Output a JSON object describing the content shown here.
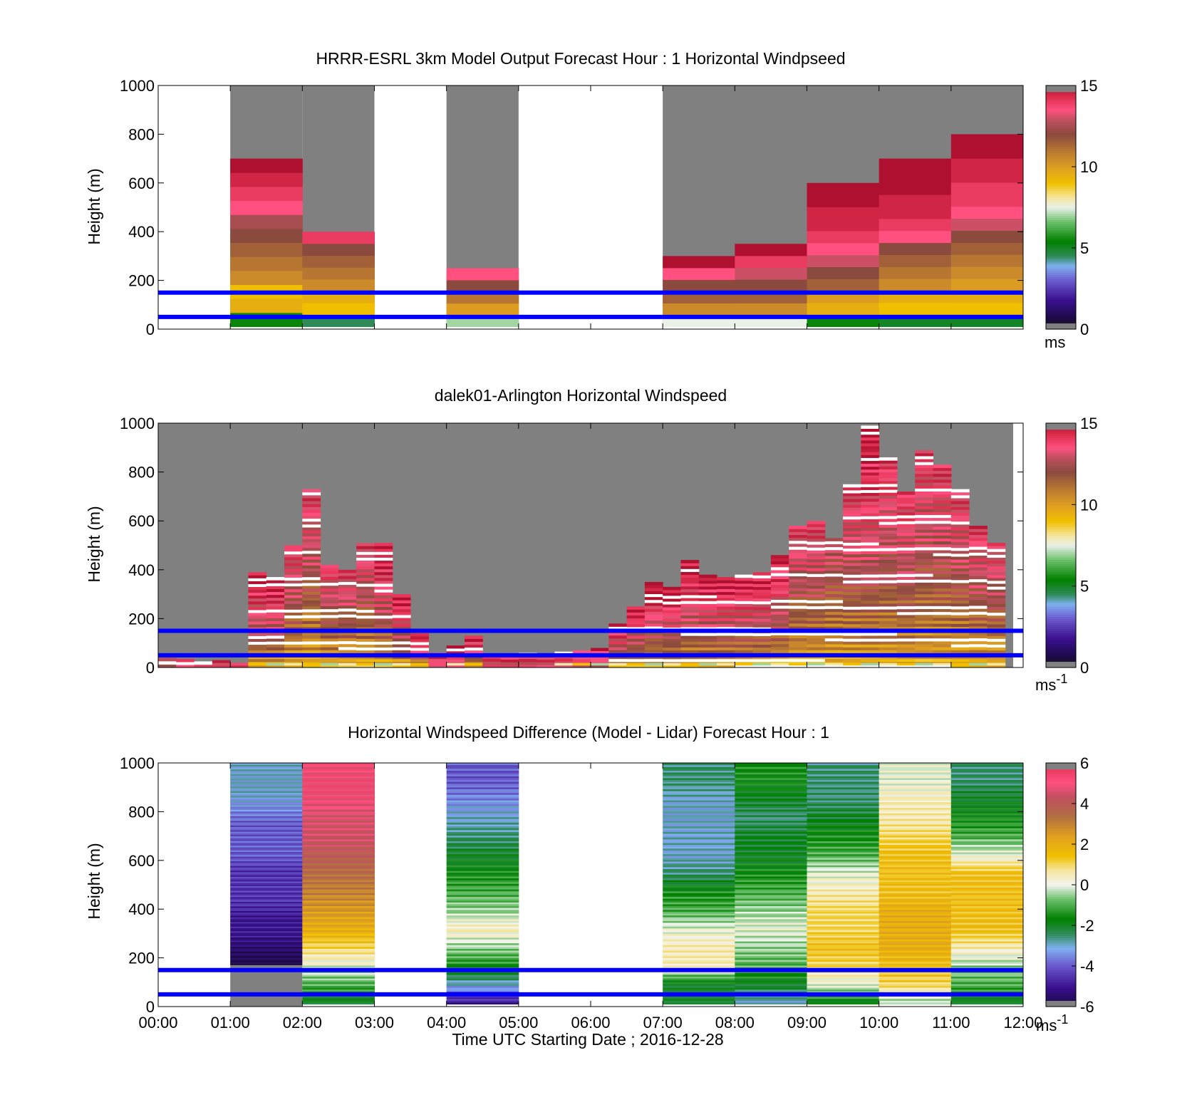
{
  "chart_data": [
    {
      "type": "heatmap",
      "id": "model",
      "title": "HRRR-ESRL 3km Model Output   Forecast Hour : 1 Horizontal Windpseed",
      "ylabel": "Height (m)",
      "ylim": [
        0,
        1000
      ],
      "yticks": [
        "0",
        "200",
        "400",
        "600",
        "800",
        "1000"
      ],
      "xlim": [
        0,
        12
      ],
      "colorbar": {
        "min": 0,
        "max": 15,
        "ticks": [
          "0",
          "5",
          "10",
          "15"
        ],
        "unit": "ms",
        "unit_sup": ""
      },
      "reference_lines_m": [
        50,
        150
      ],
      "colormap": [
        "#808080",
        "#1a0a40",
        "#3a1090",
        "#6a5acd",
        "#7fb0f0",
        "#2e8b57",
        "#008000",
        "#6abf6a",
        "#e8f0e8",
        "#f5e6a0",
        "#f0c000",
        "#e0a020",
        "#c08030",
        "#a06040",
        "#8b4a3e",
        "#c05060",
        "#ff5080",
        "#e03050",
        "#b01030",
        "#808080"
      ],
      "blocks": [
        {
          "t0": 1,
          "t1": 2,
          "top": 700,
          "bottom": 10,
          "values": [
            5.5,
            9.5,
            9.0,
            10.5,
            11.0,
            11.5,
            12.0,
            12.5,
            13.5,
            14.0,
            14.5,
            15.0
          ],
          "step": 50
        },
        {
          "t0": 2,
          "t1": 3,
          "top": 400,
          "bottom": 10,
          "values": [
            4.5,
            9.0,
            9.5,
            10.5,
            11.0,
            11.5,
            12.0,
            14.0
          ],
          "step": 50
        },
        {
          "t0": 4,
          "t1": 5,
          "top": 250,
          "bottom": 10,
          "values": [
            7.0,
            10.0,
            11.0,
            12.0,
            13.5
          ],
          "step": 50
        },
        {
          "t0": 7,
          "t1": 8,
          "top": 300,
          "bottom": 10,
          "values": [
            7.5,
            10.5,
            11.5,
            12.0,
            13.5,
            15.0
          ],
          "step": 50
        },
        {
          "t0": 8,
          "t1": 9,
          "top": 350,
          "bottom": 10,
          "values": [
            7.5,
            10.5,
            11.5,
            12.0,
            13.0,
            14.0,
            15.0
          ],
          "step": 50
        },
        {
          "t0": 9,
          "t1": 10,
          "top": 600,
          "bottom": 10,
          "values": [
            5.5,
            9.5,
            10.0,
            11.5,
            12.0,
            13.0,
            13.5,
            14.0,
            14.5,
            14.5,
            15.0,
            15.0
          ],
          "step": 50
        },
        {
          "t0": 10,
          "t1": 11,
          "top": 700,
          "bottom": 10,
          "values": [
            5.0,
            9.0,
            9.5,
            10.5,
            11.0,
            11.5,
            12.0,
            13.5,
            14.0,
            14.5,
            14.5,
            15.0,
            15.0,
            15.0
          ],
          "step": 50
        },
        {
          "t0": 11,
          "t1": 12,
          "top": 800,
          "bottom": 10,
          "values": [
            5.0,
            9.0,
            9.5,
            10.0,
            10.5,
            11.0,
            11.5,
            12.0,
            13.0,
            13.5,
            14.0,
            14.0,
            14.5,
            14.5,
            15.0,
            15.0
          ],
          "step": 50
        }
      ],
      "missing_fill": [
        [
          1,
          2
        ],
        [
          2,
          3
        ],
        [
          4,
          5
        ],
        [
          7,
          12
        ]
      ]
    },
    {
      "type": "heatmap",
      "id": "lidar",
      "title": "dalek01-Arlington  Horizontal Windspeed",
      "ylabel": "Height (m)",
      "ylim": [
        0,
        1000
      ],
      "yticks": [
        "0",
        "200",
        "400",
        "600",
        "800",
        "1000"
      ],
      "xlim": [
        0,
        12
      ],
      "colorbar": {
        "min": 0,
        "max": 15,
        "ticks": [
          "0",
          "5",
          "10",
          "15"
        ],
        "unit": "ms",
        "unit_sup": "-1"
      },
      "reference_lines_m": [
        50,
        150
      ],
      "columns": [
        {
          "t": 0.25,
          "top": 40,
          "peak": 13
        },
        {
          "t": 0.5,
          "top": 35,
          "peak": 14
        },
        {
          "t": 0.75,
          "top": 25,
          "peak": 14
        },
        {
          "t": 1.0,
          "top": 30,
          "peak": 14
        },
        {
          "t": 1.25,
          "top": 20,
          "peak": 14
        },
        {
          "t": 1.5,
          "top": 390,
          "peak": 14
        },
        {
          "t": 1.75,
          "top": 370,
          "peak": 14
        },
        {
          "t": 2.0,
          "top": 500,
          "peak": 13
        },
        {
          "t": 2.25,
          "top": 730,
          "peak": 13
        },
        {
          "t": 2.5,
          "top": 420,
          "peak": 13
        },
        {
          "t": 2.75,
          "top": 400,
          "peak": 13
        },
        {
          "t": 3.0,
          "top": 510,
          "peak": 13
        },
        {
          "t": 3.25,
          "top": 510,
          "peak": 14
        },
        {
          "t": 3.5,
          "top": 300,
          "peak": 14
        },
        {
          "t": 3.75,
          "top": 140,
          "peak": 14
        },
        {
          "t": 4.0,
          "top": 60,
          "peak": 14
        },
        {
          "t": 4.25,
          "top": 90,
          "peak": 14
        },
        {
          "t": 4.5,
          "top": 130,
          "peak": 14
        },
        {
          "t": 4.75,
          "top": 50,
          "peak": 14
        },
        {
          "t": 5.0,
          "top": 45,
          "peak": 14
        },
        {
          "t": 5.25,
          "top": 60,
          "peak": 14
        },
        {
          "t": 5.5,
          "top": 55,
          "peak": 14
        },
        {
          "t": 5.75,
          "top": 65,
          "peak": 14
        },
        {
          "t": 6.0,
          "top": 70,
          "peak": 14
        },
        {
          "t": 6.25,
          "top": 80,
          "peak": 14
        },
        {
          "t": 6.5,
          "top": 180,
          "peak": 14
        },
        {
          "t": 6.75,
          "top": 250,
          "peak": 14
        },
        {
          "t": 7.0,
          "top": 350,
          "peak": 14
        },
        {
          "t": 7.25,
          "top": 330,
          "peak": 14
        },
        {
          "t": 7.5,
          "top": 440,
          "peak": 14
        },
        {
          "t": 7.75,
          "top": 380,
          "peak": 14
        },
        {
          "t": 8.0,
          "top": 370,
          "peak": 14
        },
        {
          "t": 8.25,
          "top": 380,
          "peak": 14
        },
        {
          "t": 8.5,
          "top": 390,
          "peak": 14
        },
        {
          "t": 8.75,
          "top": 460,
          "peak": 14
        },
        {
          "t": 9.0,
          "top": 580,
          "peak": 13
        },
        {
          "t": 9.25,
          "top": 600,
          "peak": 13
        },
        {
          "t": 9.5,
          "top": 530,
          "peak": 12
        },
        {
          "t": 9.75,
          "top": 750,
          "peak": 13
        },
        {
          "t": 10.0,
          "top": 990,
          "peak": 14
        },
        {
          "t": 10.25,
          "top": 860,
          "peak": 13
        },
        {
          "t": 10.5,
          "top": 720,
          "peak": 13
        },
        {
          "t": 10.75,
          "top": 890,
          "peak": 13
        },
        {
          "t": 11.0,
          "top": 830,
          "peak": 13
        },
        {
          "t": 11.25,
          "top": 730,
          "peak": 13
        },
        {
          "t": 11.5,
          "top": 580,
          "peak": 13
        },
        {
          "t": 11.75,
          "top": 510,
          "peak": 13
        }
      ]
    },
    {
      "type": "heatmap",
      "id": "difference",
      "title": "Horizontal Windspeed Difference (Model - Lidar) Forecast Hour : 1",
      "ylabel": "Height (m)",
      "xlabel": "Time UTC  Starting Date ; 2016-12-28",
      "ylim": [
        0,
        1000
      ],
      "yticks": [
        "0",
        "200",
        "400",
        "600",
        "800",
        "1000"
      ],
      "xlim": [
        0,
        12
      ],
      "xticks": [
        "00:00",
        "01:00",
        "02:00",
        "03:00",
        "04:00",
        "05:00",
        "06:00",
        "07:00",
        "08:00",
        "09:00",
        "10:00",
        "11:00",
        "12:00"
      ],
      "colorbar": {
        "min": -6,
        "max": 6,
        "ticks": [
          "-6",
          "-4",
          "-2",
          "0",
          "2",
          "4",
          "6"
        ],
        "unit": "ms",
        "unit_sup": "-1"
      },
      "reference_lines_m": [
        50,
        150
      ],
      "columns": [
        {
          "t0": 1,
          "t1": 2,
          "bottom": 170,
          "top": 1000,
          "values": [
            -6,
            -5.5,
            -5,
            -5,
            -4.5,
            -4.5,
            -4.5,
            -4,
            -4,
            -4,
            -3.5,
            -3,
            -3
          ]
        },
        {
          "t0": 2,
          "t1": 3,
          "bottom": 10,
          "top": 1000,
          "values": [
            -2,
            -1,
            0,
            1,
            2,
            2.5,
            3,
            3.5,
            4,
            4.5,
            4.5,
            5,
            5
          ]
        },
        {
          "t0": 4,
          "t1": 5,
          "bottom": 10,
          "top": 1000,
          "values": [
            -5,
            -3,
            -1.5,
            -0.5,
            0.5,
            -0.5,
            -1,
            -1.5,
            -2,
            -2.5,
            -3,
            -3.5,
            -4
          ]
        },
        {
          "t0": 7,
          "t1": 8,
          "bottom": 10,
          "top": 1000,
          "values": [
            -2,
            -2,
            0.5,
            0.5,
            0,
            -1,
            -1.5,
            -2.5,
            -3,
            -3,
            -3,
            -3,
            -2.5
          ]
        },
        {
          "t0": 8,
          "t1": 9,
          "bottom": 10,
          "top": 1000,
          "values": [
            -3,
            -2,
            -1,
            -0.5,
            0,
            -0.5,
            -1,
            -1.5,
            -2,
            -2,
            -2.5,
            -2,
            -1.5
          ]
        },
        {
          "t0": 9,
          "t1": 10,
          "bottom": 10,
          "top": 1000,
          "values": [
            -2,
            0,
            1,
            1.5,
            1,
            1,
            0.5,
            0,
            -1,
            -1.5,
            -2,
            -2.5,
            -2.5
          ]
        },
        {
          "t0": 10,
          "t1": 11,
          "bottom": 10,
          "top": 1000,
          "values": [
            -0.5,
            1,
            1.5,
            2,
            2,
            2,
            1.5,
            1.5,
            1.5,
            1,
            0.5,
            0.5,
            0
          ]
        },
        {
          "t0": 11,
          "t1": 12,
          "bottom": 10,
          "top": 1000,
          "values": [
            -2,
            -1,
            -0.5,
            0.5,
            1.5,
            1.5,
            1.5,
            1.5,
            0,
            -1,
            -1.5,
            -2,
            -2.5
          ]
        }
      ]
    }
  ]
}
